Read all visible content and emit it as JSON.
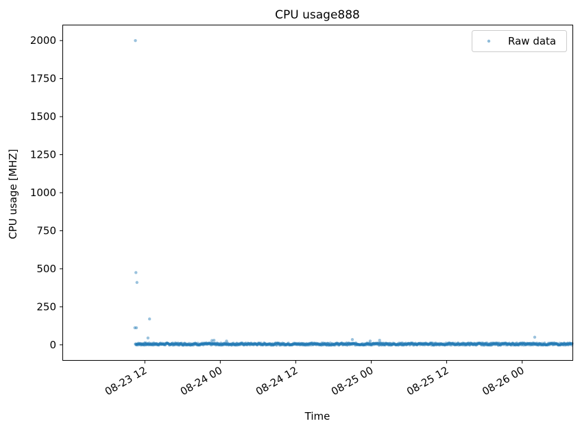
{
  "chart_data": {
    "type": "scatter",
    "title": "CPU usage888",
    "xlabel": "Time",
    "ylabel": "CPU usage [MHZ]",
    "x_range": [
      "2023-08-22T23:00",
      "2023-08-26T08:00"
    ],
    "ylim": [
      -100,
      2100
    ],
    "x_ticks": [
      {
        "label": "08-23 12",
        "value": "2023-08-23T12:00"
      },
      {
        "label": "08-24 00",
        "value": "2023-08-24T00:00"
      },
      {
        "label": "08-24 12",
        "value": "2023-08-24T12:00"
      },
      {
        "label": "08-25 00",
        "value": "2023-08-25T00:00"
      },
      {
        "label": "08-25 12",
        "value": "2023-08-25T12:00"
      },
      {
        "label": "08-26 00",
        "value": "2023-08-26T00:00"
      }
    ],
    "y_ticks": [
      0,
      250,
      500,
      750,
      1000,
      1250,
      1500,
      1750,
      2000
    ],
    "grid": false,
    "legend": {
      "placement": "top-right",
      "entries": [
        "Raw data"
      ]
    },
    "series": [
      {
        "name": "Raw data",
        "color": "#1f77b4",
        "points": [
          {
            "x": "2023-08-23T10:30",
            "y": 2000
          },
          {
            "x": "2023-08-23T10:35",
            "y": 475
          },
          {
            "x": "2023-08-23T10:45",
            "y": 410
          },
          {
            "x": "2023-08-23T10:25",
            "y": 112
          },
          {
            "x": "2023-08-23T10:40",
            "y": 112
          },
          {
            "x": "2023-08-23T12:45",
            "y": 170
          },
          {
            "x": "2023-08-23T12:30",
            "y": 45
          },
          {
            "x": "2023-08-23T23:00",
            "y": 30
          },
          {
            "x": "2023-08-23T22:40",
            "y": 28
          },
          {
            "x": "2023-08-24T01:00",
            "y": 25
          },
          {
            "x": "2023-08-24T21:00",
            "y": 35
          },
          {
            "x": "2023-08-24T23:50",
            "y": 25
          },
          {
            "x": "2023-08-25T01:20",
            "y": 30
          },
          {
            "x": "2023-08-26T02:00",
            "y": 50
          }
        ],
        "baseline": {
          "start": "2023-08-23T10:30",
          "end": "2023-08-26T08:00",
          "typical_value": 5
        }
      }
    ]
  }
}
